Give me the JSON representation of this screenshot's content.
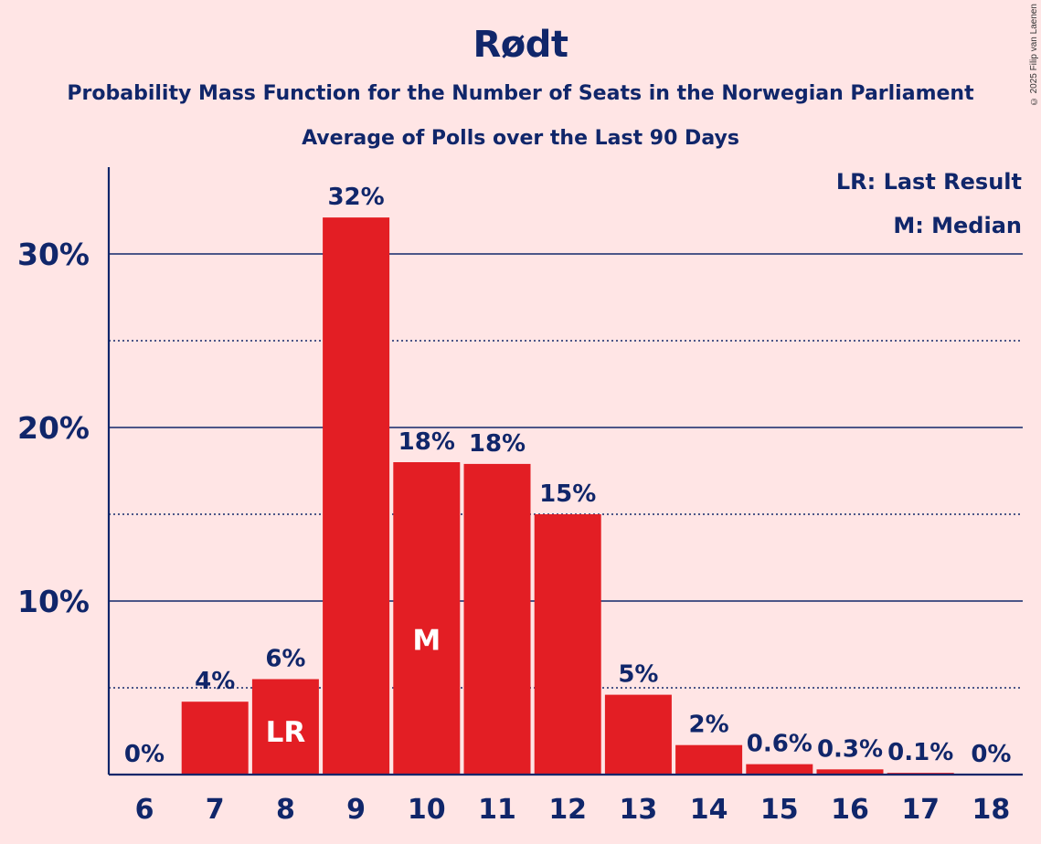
{
  "header": {
    "title": "Rødt",
    "subtitle": "Probability Mass Function for the Number of Seats in the Norwegian Parliament",
    "subtitle2": "Average of Polls over the Last 90 Days",
    "copyright": "© 2025 Filip van Laenen"
  },
  "legend": {
    "last_result": "LR: Last Result",
    "median": "M: Median"
  },
  "colors": {
    "background": "#FFE5E5",
    "bar": "#E31E24",
    "text": "#10266A",
    "axis": "#10266A"
  },
  "chart_data": {
    "type": "bar",
    "categories": [
      "6",
      "7",
      "8",
      "9",
      "10",
      "11",
      "12",
      "13",
      "14",
      "15",
      "16",
      "17",
      "18"
    ],
    "values": [
      0,
      4.2,
      5.5,
      32.1,
      18.0,
      17.9,
      15.0,
      4.6,
      1.7,
      0.6,
      0.3,
      0.1,
      0
    ],
    "data_labels": [
      "0%",
      "4%",
      "6%",
      "32%",
      "18%",
      "18%",
      "15%",
      "5%",
      "2%",
      "0.6%",
      "0.3%",
      "0.1%",
      "0%"
    ],
    "bar_marks": {
      "8": "LR",
      "10": "M"
    },
    "y_ticks": [
      10,
      20,
      30
    ],
    "y_tick_labels": [
      "10%",
      "20%",
      "30%"
    ],
    "y_minor_gridlines": [
      5,
      15,
      25
    ],
    "ylim": [
      0,
      35
    ],
    "grid": true,
    "legend_placement": "top-right"
  }
}
